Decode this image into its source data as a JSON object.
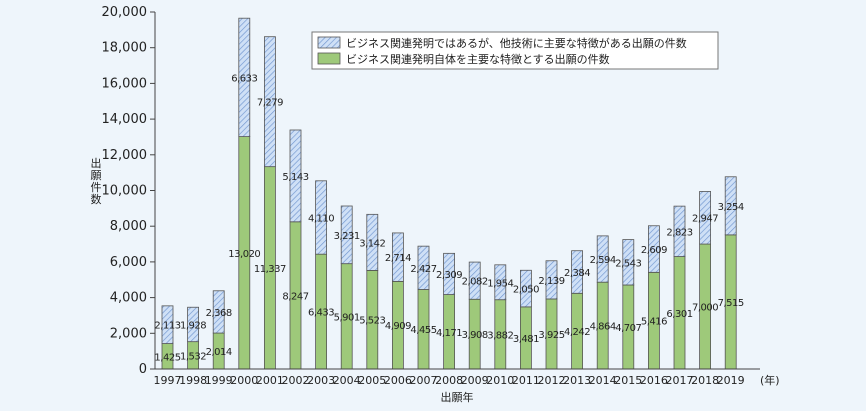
{
  "chart_data": {
    "type": "bar",
    "stacked": true,
    "categories": [
      "1997",
      "1998",
      "1999",
      "2000",
      "2001",
      "2002",
      "2003",
      "2004",
      "2005",
      "2006",
      "2007",
      "2008",
      "2009",
      "2010",
      "2011",
      "2012",
      "2013",
      "2014",
      "2015",
      "2016",
      "2017",
      "2018",
      "2019"
    ],
    "x_unit": "(年)",
    "xlabel": "出願年",
    "ylabel": "出願件数",
    "ylim": [
      0,
      20000
    ],
    "yticks": [
      "0",
      "2,000",
      "4,000",
      "6,000",
      "8,000",
      "10,000",
      "12,000",
      "14,000",
      "16,000",
      "18,000",
      "20,000"
    ],
    "grid": false,
    "legend_position": "top-right",
    "series": [
      {
        "name": "ビジネス関連発明自体を主要な特徴とする出願の件数",
        "color": "#9ec97a",
        "pattern": "solid",
        "values": [
          1425,
          1532,
          2014,
          13020,
          11337,
          8247,
          6433,
          5901,
          5523,
          4909,
          4455,
          4171,
          3908,
          3882,
          3481,
          3925,
          4242,
          4864,
          4707,
          5416,
          6301,
          7000,
          7515
        ],
        "labels": [
          "1,425",
          "1,532",
          "2,014",
          "13,020",
          "11,337",
          "8,247",
          "6,433",
          "5,901",
          "5,523",
          "4,909",
          "4,455",
          "4,171",
          "3,908",
          "3,882",
          "3,481",
          "3,925",
          "4,242",
          "4,864",
          "4,707",
          "5,416",
          "6,301",
          "7,000",
          "7,515"
        ]
      },
      {
        "name": "ビジネス関連発明ではあるが、他技術に主要な特徴がある出願の件数",
        "color": "#a9c4ea",
        "pattern": "hatched",
        "values": [
          2113,
          1928,
          2368,
          6633,
          7279,
          5143,
          4110,
          3231,
          3142,
          2714,
          2427,
          2309,
          2082,
          1954,
          2050,
          2139,
          2384,
          2594,
          2543,
          2609,
          2823,
          2947,
          3254
        ],
        "labels": [
          "2,113",
          "1,928",
          "2,368",
          "6,633",
          "7,279",
          "5,143",
          "4,110",
          "3,231",
          "3,142",
          "2,714",
          "2,427",
          "2,309",
          "2,082",
          "1,954",
          "2,050",
          "2,139",
          "2,384",
          "2,594",
          "2,543",
          "2,609",
          "2,823",
          "2,947",
          "3,254"
        ]
      }
    ]
  }
}
